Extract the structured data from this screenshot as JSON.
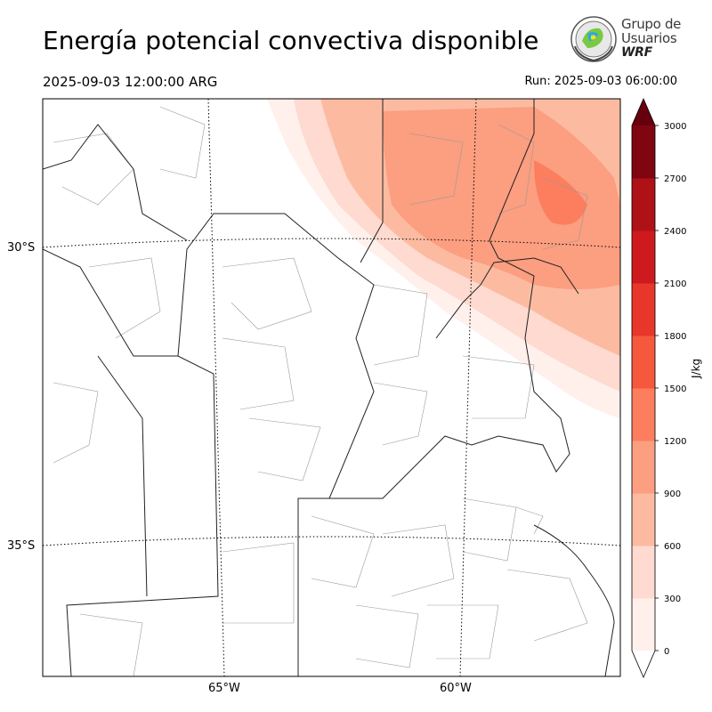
{
  "header": {
    "title": "Energía potencial convectiva disponible",
    "valid_time": "2025-09-03 12:00:00 ARG",
    "run_time": "Run: 2025-09-03 06:00:00"
  },
  "logo": {
    "line1": "Grupo de",
    "line2": "Usuarios",
    "line3": "WRF"
  },
  "map": {
    "lat_labels": [
      "30°S",
      "35°S"
    ],
    "lon_labels": [
      "65°W",
      "60°W"
    ]
  },
  "colorbar": {
    "unit": "J/kg",
    "ticks": [
      "0",
      "300",
      "600",
      "900",
      "1200",
      "1500",
      "1800",
      "2100",
      "2400",
      "2700",
      "3000"
    ],
    "colors": [
      "#fff0ec",
      "#fedad0",
      "#fcbba1",
      "#fc9e80",
      "#fc7e5f",
      "#f6583e",
      "#e9362a",
      "#ce1a1e",
      "#ae1217",
      "#7f0610"
    ],
    "over_color": "#67000d",
    "under_color": "#ffffff"
  }
}
